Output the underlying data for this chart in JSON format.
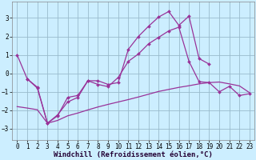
{
  "background_color": "#cceeff",
  "grid_color": "#99bbcc",
  "line_color": "#993399",
  "xlabel": "Windchill (Refroidissement éolien,°C)",
  "xlabel_fontsize": 6.5,
  "tick_fontsize": 5.5,
  "ylim": [
    -3.6,
    3.9
  ],
  "yticks": [
    -3,
    -2,
    -1,
    0,
    1,
    2,
    3
  ],
  "xlim": [
    -0.5,
    23.5
  ],
  "line1_x": [
    0,
    1,
    2,
    3,
    4,
    5,
    6,
    7,
    8,
    9,
    10,
    11,
    12,
    13,
    14,
    15,
    16,
    17,
    18,
    19
  ],
  "line1_y": [
    1.0,
    -0.3,
    -0.8,
    -2.7,
    -2.3,
    -1.3,
    -1.2,
    -0.4,
    -0.4,
    -0.6,
    -0.5,
    1.3,
    2.0,
    2.55,
    3.05,
    3.35,
    2.6,
    3.1,
    0.8,
    0.5
  ],
  "line2_x": [
    1,
    2,
    3,
    4,
    5,
    6,
    7,
    8,
    9,
    10,
    11,
    12,
    13,
    14,
    15,
    16,
    17,
    18,
    19,
    20,
    21,
    22,
    23
  ],
  "line2_y": [
    -0.3,
    -0.75,
    -2.7,
    -2.25,
    -1.55,
    -1.3,
    -0.4,
    -0.6,
    -0.72,
    -0.22,
    0.65,
    1.05,
    1.6,
    1.95,
    2.3,
    2.5,
    0.65,
    -0.45,
    -0.5,
    -1.0,
    -0.7,
    -1.2,
    -1.1
  ],
  "line3_x": [
    0,
    1,
    2,
    3,
    4,
    5,
    6,
    7,
    8,
    9,
    10,
    11,
    12,
    13,
    14,
    15,
    16,
    17,
    18,
    19,
    20,
    21,
    22,
    23
  ],
  "line3_y": [
    -1.8,
    -1.88,
    -1.97,
    -2.7,
    -2.55,
    -2.3,
    -2.15,
    -1.98,
    -1.82,
    -1.68,
    -1.55,
    -1.42,
    -1.28,
    -1.13,
    -0.98,
    -0.87,
    -0.76,
    -0.67,
    -0.57,
    -0.5,
    -0.47,
    -0.57,
    -0.68,
    -1.05
  ]
}
